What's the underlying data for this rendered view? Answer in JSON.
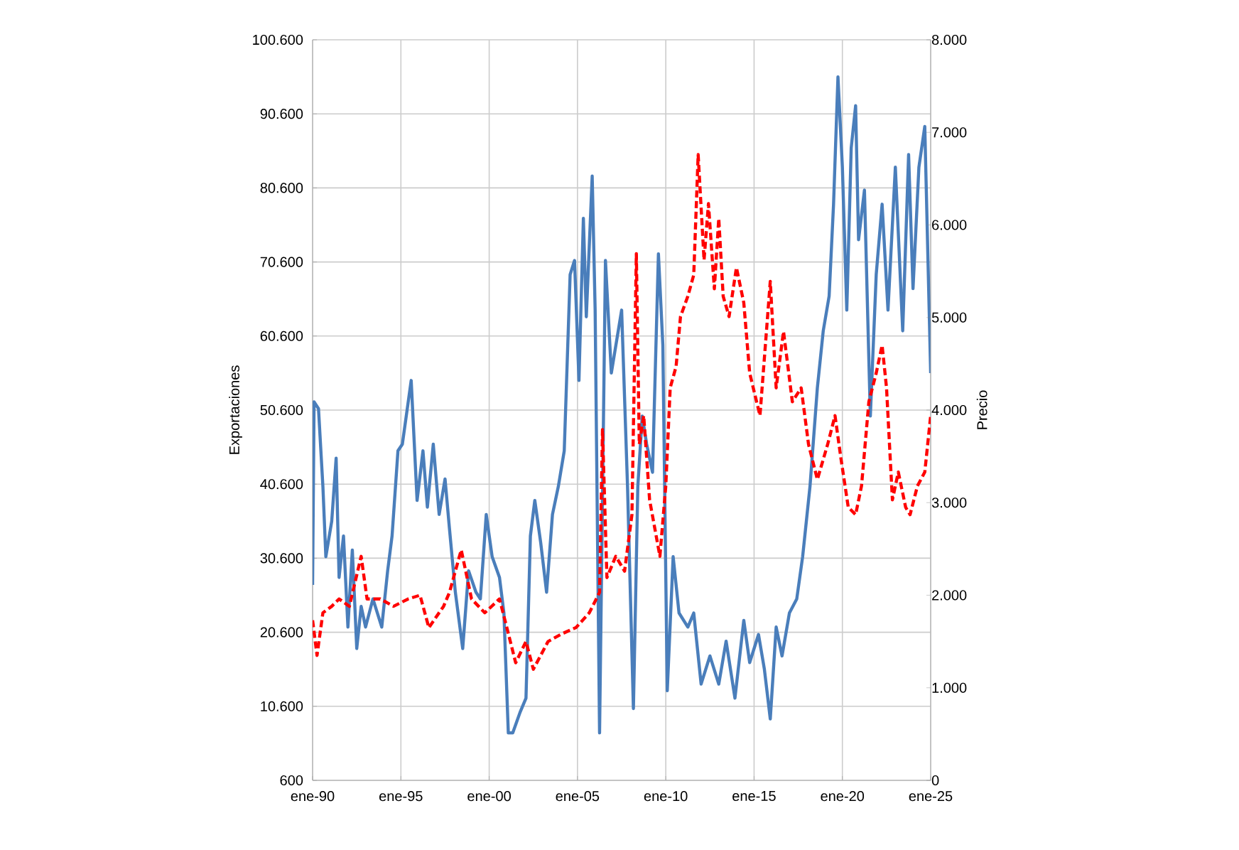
{
  "chart_data": {
    "type": "line",
    "ylabel": "Exportaciones",
    "y2label": "Precio",
    "xlim": [
      "1990-01",
      "2025-01"
    ],
    "xticks": [
      {
        "value": "1990-01",
        "label": "ene-90"
      },
      {
        "value": "1995-01",
        "label": "ene-95"
      },
      {
        "value": "2000-01",
        "label": "ene-00"
      },
      {
        "value": "2005-01",
        "label": "ene-05"
      },
      {
        "value": "2010-01",
        "label": "ene-10"
      },
      {
        "value": "2015-01",
        "label": "ene-15"
      },
      {
        "value": "2020-01",
        "label": "ene-20"
      },
      {
        "value": "2025-01",
        "label": "ene-25"
      }
    ],
    "ylim": [
      600,
      100600
    ],
    "yticks": [
      600,
      {
        "value": 10600,
        "label": "10.600"
      },
      {
        "value": 20600,
        "label": "20.600"
      },
      {
        "value": 30600,
        "label": "30.600"
      },
      {
        "value": 40600,
        "label": "40.600"
      },
      {
        "value": 50600,
        "label": "50.600"
      },
      {
        "value": 60600,
        "label": "60.600"
      },
      {
        "value": 70600,
        "label": "70.600"
      },
      {
        "value": 80600,
        "label": "80.600"
      },
      {
        "value": 90600,
        "label": "90.600"
      },
      {
        "value": 100600,
        "label": "100.600"
      }
    ],
    "y2lim": [
      0,
      8000
    ],
    "y2ticks": [
      0,
      {
        "value": 1000,
        "label": "1.000"
      },
      {
        "value": 2000,
        "label": "2.000"
      },
      {
        "value": 3000,
        "label": "3.000"
      },
      {
        "value": 4000,
        "label": "4.000"
      },
      {
        "value": 5000,
        "label": "5.000"
      },
      {
        "value": 6000,
        "label": "6.000"
      },
      {
        "value": 7000,
        "label": "7.000"
      },
      {
        "value": 8000,
        "label": "8.000"
      }
    ],
    "grid": true,
    "series": [
      {
        "color": "#4a7ebb",
        "line_style": "solid",
        "x": [
          "1990-01",
          "1990-02",
          "1990-05",
          "1990-08",
          "1990-10",
          "1991-02",
          "1991-05",
          "1991-07",
          "1991-10",
          "1992-01",
          "1992-04",
          "1992-07",
          "1992-10",
          "1993-01",
          "1993-06",
          "1993-12",
          "1994-04",
          "1994-07",
          "1994-11",
          "1995-02",
          "1995-08",
          "1995-12",
          "1996-04",
          "1996-07",
          "1996-11",
          "1997-03",
          "1997-07",
          "1997-10",
          "1998-02",
          "1998-07",
          "1998-11",
          "1999-04",
          "1999-07",
          "1999-11",
          "2000-03",
          "2000-08",
          "2000-11",
          "2001-02",
          "2001-05",
          "2001-10",
          "2002-02",
          "2002-05",
          "2002-08",
          "2002-12",
          "2003-04",
          "2003-08",
          "2003-12",
          "2004-04",
          "2004-08",
          "2004-11",
          "2005-02",
          "2005-05",
          "2005-07",
          "2005-11",
          "2006-01",
          "2006-04",
          "2006-08",
          "2006-12",
          "2007-07",
          "2007-11",
          "2008-03",
          "2008-06",
          "2008-09",
          "2008-12",
          "2009-04",
          "2009-08",
          "2009-11",
          "2010-02",
          "2010-06",
          "2010-10",
          "2011-04",
          "2011-08",
          "2012-01",
          "2012-07",
          "2013-01",
          "2013-06",
          "2013-12",
          "2014-06",
          "2014-10",
          "2015-04",
          "2015-08",
          "2015-12",
          "2016-04",
          "2016-08",
          "2017-01",
          "2017-06",
          "2017-10",
          "2018-03",
          "2018-08",
          "2018-12",
          "2019-04",
          "2019-07",
          "2019-10",
          "2020-01",
          "2020-04",
          "2020-07",
          "2020-10",
          "2020-12",
          "2021-04",
          "2021-08",
          "2021-12",
          "2022-04",
          "2022-08",
          "2023-01",
          "2023-06",
          "2023-10",
          "2024-01",
          "2024-05",
          "2024-09",
          "2025-01"
        ],
        "values": [
          27000,
          51700,
          50800,
          40300,
          30800,
          35600,
          44100,
          28000,
          33600,
          21300,
          31700,
          18400,
          24100,
          21300,
          25100,
          21300,
          28900,
          33600,
          45100,
          46000,
          54600,
          38400,
          45100,
          37500,
          46000,
          36500,
          41300,
          34600,
          26000,
          18400,
          28900,
          26000,
          25100,
          36500,
          30800,
          28000,
          23200,
          7000,
          7000,
          9800,
          11700,
          33600,
          38400,
          32700,
          26000,
          36500,
          40300,
          45100,
          68900,
          70800,
          54600,
          76500,
          63200,
          82200,
          64100,
          7000,
          70800,
          55600,
          64100,
          40300,
          10300,
          40300,
          49800,
          46000,
          42200,
          71700,
          59400,
          12700,
          30800,
          23200,
          21300,
          23200,
          13600,
          17400,
          13600,
          19400,
          11700,
          22200,
          16500,
          20300,
          15600,
          8900,
          21300,
          17400,
          23200,
          25100,
          30800,
          40300,
          53600,
          61300,
          66000,
          78400,
          95600,
          83400,
          64100,
          86000,
          91700,
          73600,
          80300,
          49800,
          68900,
          78400,
          64100,
          83400,
          61300,
          85100,
          67000,
          83400,
          88900,
          55600
        ]
      },
      {
        "color": "#ff0000",
        "line_style": "dashed",
        "axis": "y2",
        "x": [
          "1990-01",
          "1990-04",
          "1990-08",
          "1991-02",
          "1991-07",
          "1992-02",
          "1992-10",
          "1993-02",
          "1993-11",
          "1994-08",
          "1995-06",
          "1996-02",
          "1996-08",
          "1997-06",
          "1997-10",
          "1998-06",
          "1999-01",
          "1999-10",
          "2000-08",
          "2001-01",
          "2001-07",
          "2002-02",
          "2002-07",
          "2003-05",
          "2004-02",
          "2004-12",
          "2005-09",
          "2006-04",
          "2006-06",
          "2006-09",
          "2007-03",
          "2007-09",
          "2008-02",
          "2008-05",
          "2008-07",
          "2008-10",
          "2009-02",
          "2009-09",
          "2010-01",
          "2010-04",
          "2010-08",
          "2010-11",
          "2011-04",
          "2011-08",
          "2011-11",
          "2012-03",
          "2012-06",
          "2012-10",
          "2013-01",
          "2013-04",
          "2013-08",
          "2014-01",
          "2014-06",
          "2014-10",
          "2015-05",
          "2015-12",
          "2016-04",
          "2016-09",
          "2017-03",
          "2017-09",
          "2018-02",
          "2018-08",
          "2019-03",
          "2019-08",
          "2019-12",
          "2020-05",
          "2020-10",
          "2021-02",
          "2021-07",
          "2021-12",
          "2022-04",
          "2022-07",
          "2022-11",
          "2023-03",
          "2023-08",
          "2023-11",
          "2024-04",
          "2024-09",
          "2025-01"
        ],
        "values": [
          1730,
          1350,
          1810,
          1880,
          1960,
          1880,
          2420,
          1960,
          1960,
          1880,
          1960,
          2000,
          1650,
          1880,
          2030,
          2490,
          1960,
          1810,
          1960,
          1650,
          1270,
          1500,
          1200,
          1500,
          1580,
          1650,
          1810,
          2030,
          3790,
          2190,
          2420,
          2260,
          2870,
          5690,
          3630,
          3940,
          3030,
          2420,
          3180,
          4240,
          4470,
          5010,
          5230,
          5460,
          6760,
          5620,
          6230,
          5310,
          6070,
          5230,
          5010,
          5540,
          5160,
          4400,
          3940,
          5390,
          4240,
          4850,
          4090,
          4240,
          3630,
          3250,
          3630,
          3940,
          3480,
          2950,
          2870,
          3180,
          4090,
          4400,
          4700,
          4240,
          3030,
          3330,
          2950,
          2870,
          3180,
          3330,
          3940
        ]
      }
    ]
  }
}
